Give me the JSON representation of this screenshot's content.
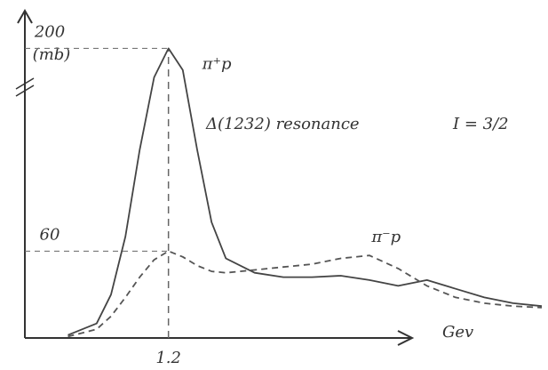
{
  "chart_data": {
    "type": "line",
    "y_label": "(mb)",
    "x_label": "Gev",
    "annotation": "Δ(1232) resonance",
    "annotation_isospin": "I = 3/2",
    "x": [
      0.85,
      0.95,
      1.0,
      1.05,
      1.1,
      1.15,
      1.2,
      1.25,
      1.3,
      1.35,
      1.4,
      1.5,
      1.6,
      1.7,
      1.8,
      1.9,
      2.0,
      2.1,
      2.2,
      2.3,
      2.4,
      2.5
    ],
    "series": [
      {
        "name": "π⁺p",
        "color": "#444444",
        "style": "solid",
        "values": [
          2,
          10,
          30,
          70,
          130,
          180,
          200,
          185,
          130,
          80,
          55,
          45,
          42,
          42,
          43,
          40,
          36,
          40,
          34,
          28,
          24,
          22
        ]
      },
      {
        "name": "π⁻p",
        "color": "#555555",
        "style": "dashed",
        "values": [
          1,
          6,
          15,
          28,
          42,
          54,
          60,
          56,
          50,
          46,
          45,
          47,
          49,
          51,
          55,
          57,
          48,
          36,
          28,
          24,
          22,
          21
        ]
      }
    ],
    "xlim": [
      0.7,
      2.5
    ],
    "xticks": [
      1.2
    ],
    "ylim": [
      0,
      215
    ],
    "yticks": [
      60,
      200
    ]
  }
}
